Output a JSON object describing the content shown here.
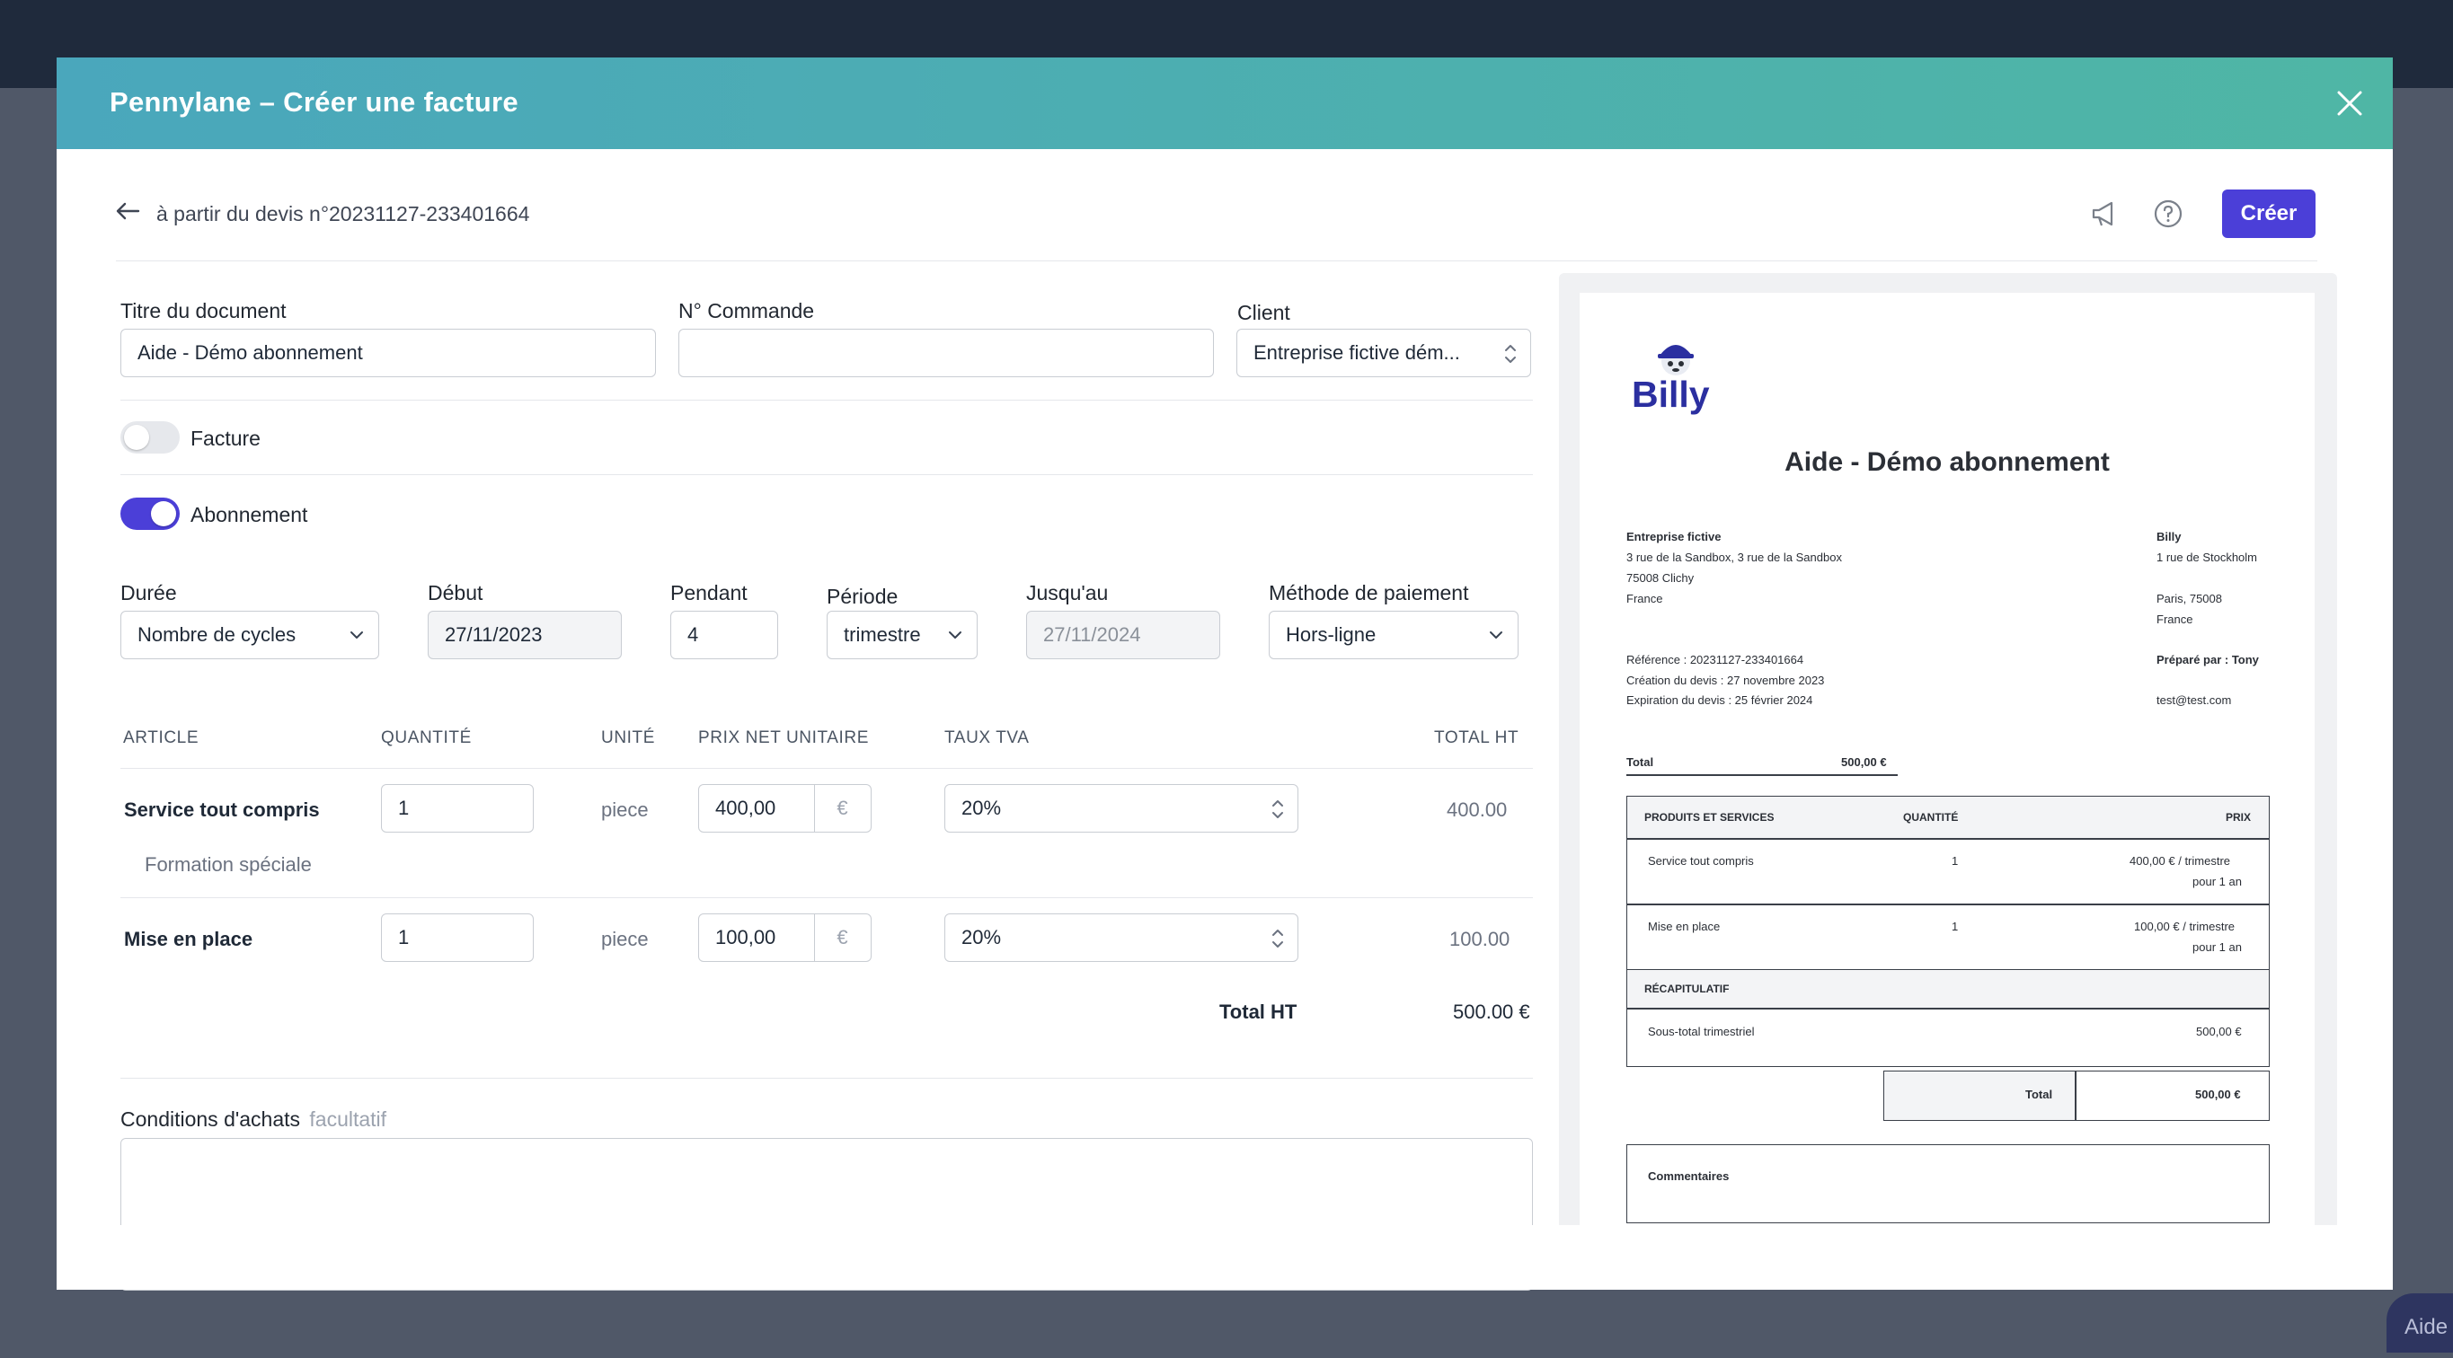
{
  "modal": {
    "title": "Pennylane – Créer une facture"
  },
  "toolbar": {
    "back_label": "à partir du devis n°20231127-233401664",
    "create_label": "Créer"
  },
  "form": {
    "titre_label": "Titre du document",
    "titre_value": "Aide - Démo abonnement",
    "commande_label": "N° Commande",
    "commande_value": "",
    "client_label": "Client",
    "client_value": "Entreprise fictive dém...",
    "facture_label": "Facture",
    "facture_on": false,
    "abonnement_label": "Abonnement",
    "abonnement_on": true,
    "duree_label": "Durée",
    "duree_value": "Nombre de cycles",
    "debut_label": "Début",
    "debut_value": "27/11/2023",
    "pendant_label": "Pendant",
    "pendant_value": "4",
    "periode_label": "Période",
    "periode_value": "trimestre",
    "jusquau_label": "Jusqu'au",
    "jusquau_value": "27/11/2024",
    "methode_label": "Méthode de paiement",
    "methode_value": "Hors-ligne",
    "conditions_label": "Conditions d'achats",
    "conditions_optional": "facultatif"
  },
  "table": {
    "headers": {
      "article": "ARTICLE",
      "quantite": "QUANTITÉ",
      "unite": "UNITÉ",
      "prix": "PRIX NET UNITAIRE",
      "tva": "TAUX TVA",
      "total": "TOTAL HT"
    },
    "rows": [
      {
        "article": "Service tout compris",
        "description": "Formation spéciale",
        "quantite": "1",
        "unite": "piece",
        "prix": "400,00",
        "currency": "€",
        "tva": "20%",
        "total": "400.00"
      },
      {
        "article": "Mise en place",
        "description": "",
        "quantite": "1",
        "unite": "piece",
        "prix": "100,00",
        "currency": "€",
        "tva": "20%",
        "total": "100.00"
      }
    ],
    "total_label": "Total HT",
    "total_value": "500.00 €"
  },
  "preview": {
    "logo_text": "Billy",
    "title": "Aide - Démo abonnement",
    "client": {
      "name": "Entreprise fictive",
      "address1": "3 rue de la Sandbox, 3 rue de la Sandbox",
      "address2": "75008 Clichy",
      "country": "France"
    },
    "issuer": {
      "name": "Billy",
      "address1": "1 rue de Stockholm",
      "address2": "Paris, 75008",
      "country": "France",
      "prepared_by": "Préparé par : Tony",
      "email": "test@test.com"
    },
    "reference": "Référence : 20231127-233401664",
    "creation": "Création du devis : 27 novembre 2023",
    "expiration": "Expiration du devis : 25 février 2024",
    "summary_total_label": "Total",
    "summary_total_value": "500,00 €",
    "table_headers": {
      "products": "PRODUITS ET SERVICES",
      "quantity": "QUANTITÉ",
      "price": "PRIX"
    },
    "rows": [
      {
        "name": "Service tout compris",
        "qty": "1",
        "price1": "400,00 € / trimestre",
        "price2": "pour 1 an"
      },
      {
        "name": "Mise en place",
        "qty": "1",
        "price1": "100,00 € / trimestre",
        "price2": "pour 1 an"
      }
    ],
    "recap_label": "RÉCAPITULATIF",
    "subtotal_label": "Sous-total trimestriel",
    "subtotal_value": "500,00 €",
    "total_label": "Total",
    "total_value": "500,00 €",
    "comments_label": "Commentaires"
  },
  "background": {
    "help_label": "Aide"
  },
  "colors": {
    "accent": "#4b3fd8",
    "header_start": "#4aa7bc",
    "header_end": "#4fb6a5",
    "logo_blue": "#2b2fa0"
  }
}
